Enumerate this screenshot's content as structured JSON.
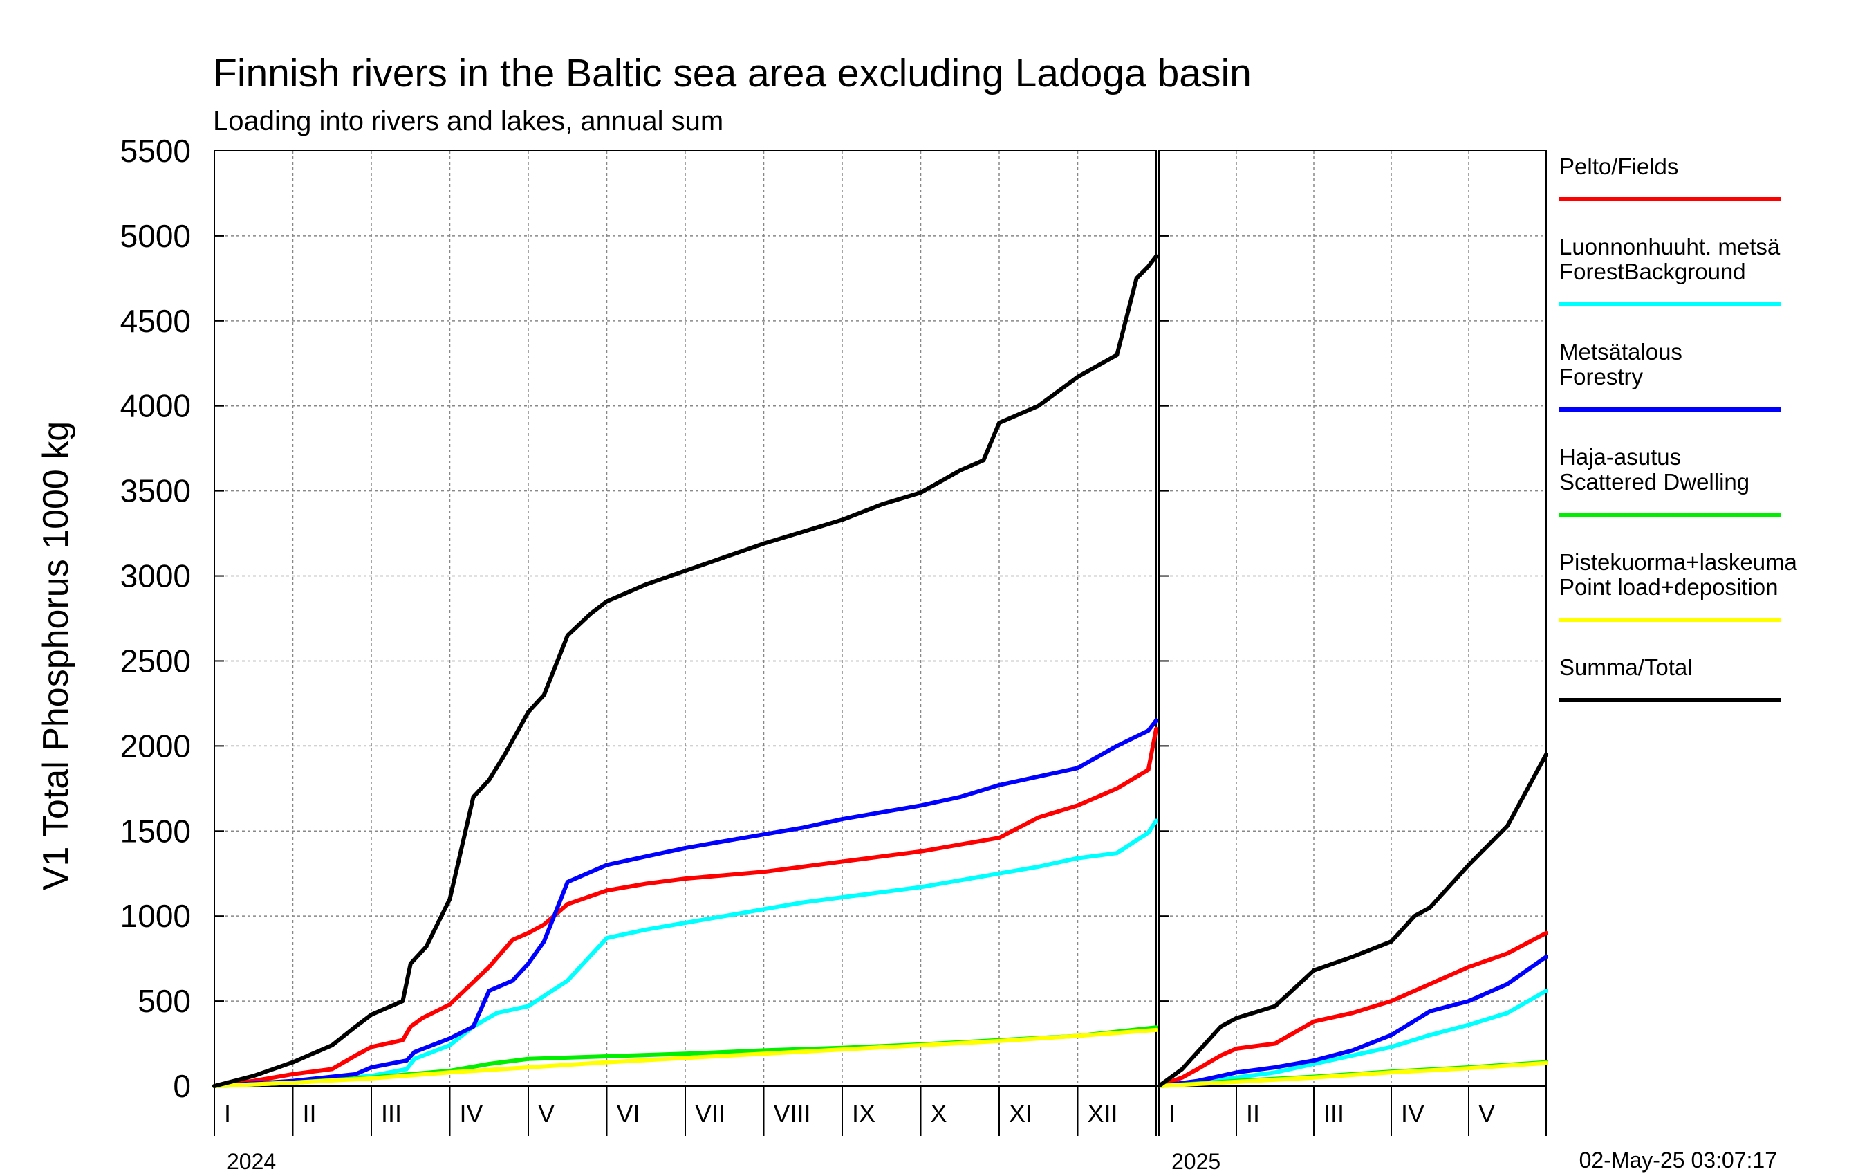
{
  "chart_data": {
    "type": "line",
    "title": "Finnish rivers in the Baltic sea area excluding Ladoga basin",
    "subtitle": "Loading into rivers and lakes, annual sum",
    "ylabel": "V1 Total Phosphorus 1000 kg",
    "ylim": [
      0,
      5500
    ],
    "yticks": [
      "0",
      "500",
      "1000",
      "1500",
      "2000",
      "2500",
      "3000",
      "3500",
      "4000",
      "4500",
      "5000",
      "5500"
    ],
    "grid": true,
    "legend_position": "right",
    "x_unit": "month",
    "panels": [
      {
        "year": "2024",
        "months": [
          "I",
          "II",
          "III",
          "IV",
          "V",
          "VI",
          "VII",
          "VIII",
          "IX",
          "X",
          "XI",
          "XII"
        ],
        "xlim": [
          0,
          12
        ],
        "series": [
          {
            "name": "Pelto/Fields",
            "color": "#ff0000",
            "x": [
              0,
              0.5,
              1,
              1.5,
              1.8,
              2,
              2.4,
              2.5,
              2.65,
              3,
              3.5,
              3.8,
              4,
              4.2,
              4.5,
              5,
              5.5,
              6,
              6.5,
              7,
              7.5,
              8,
              8.5,
              9,
              9.5,
              10,
              10.5,
              11,
              11.5,
              11.9,
              12
            ],
            "y": [
              0,
              30,
              70,
              100,
              180,
              230,
              270,
              350,
              400,
              480,
              700,
              860,
              900,
              950,
              1070,
              1150,
              1190,
              1220,
              1240,
              1260,
              1290,
              1320,
              1350,
              1380,
              1420,
              1460,
              1580,
              1650,
              1750,
              1860,
              2100
            ]
          },
          {
            "name": "Luonnonhuuht. metsä ForestBackground",
            "color": "#00ffff",
            "x": [
              0,
              1,
              2,
              2.45,
              2.55,
              3,
              3.3,
              3.6,
              4,
              4.5,
              5,
              5.5,
              6,
              6.5,
              7,
              7.5,
              8,
              8.5,
              9,
              9.5,
              10,
              10.5,
              11,
              11.5,
              11.9,
              12
            ],
            "y": [
              0,
              20,
              60,
              100,
              160,
              240,
              350,
              430,
              470,
              620,
              870,
              920,
              960,
              1000,
              1040,
              1080,
              1110,
              1140,
              1170,
              1210,
              1250,
              1290,
              1340,
              1370,
              1490,
              1560
            ]
          },
          {
            "name": "Metsätalous Forestry",
            "color": "#0000ff",
            "x": [
              0,
              1,
              1.8,
              2,
              2.45,
              2.55,
              3,
              3.3,
              3.5,
              3.8,
              4,
              4.2,
              4.5,
              5,
              5.5,
              6,
              6.5,
              7,
              7.5,
              8,
              8.5,
              9,
              9.5,
              10,
              10.5,
              11,
              11.5,
              11.9,
              12
            ],
            "y": [
              0,
              30,
              70,
              110,
              150,
              200,
              280,
              350,
              560,
              620,
              720,
              850,
              1200,
              1300,
              1350,
              1400,
              1440,
              1480,
              1520,
              1570,
              1610,
              1650,
              1700,
              1770,
              1820,
              1870,
              2000,
              2090,
              2150
            ]
          },
          {
            "name": "Haja-asutus Scattered Dwelling",
            "color": "#00ee00",
            "x": [
              0,
              1,
              2,
              3,
              3.5,
              4,
              5,
              6,
              7,
              8,
              9,
              10,
              11,
              11.5,
              12
            ],
            "y": [
              0,
              20,
              50,
              90,
              130,
              160,
              175,
              190,
              210,
              225,
              245,
              270,
              295,
              320,
              345
            ]
          },
          {
            "name": "Pistekuorma+laskeuma Point load+deposition",
            "color": "#ffff00",
            "x": [
              0,
              1,
              2,
              3,
              4,
              5,
              6,
              7,
              8,
              9,
              10,
              11,
              12
            ],
            "y": [
              0,
              20,
              45,
              80,
              110,
              140,
              165,
              190,
              215,
              240,
              265,
              295,
              330
            ]
          },
          {
            "name": "Summa/Total",
            "color": "#000000",
            "x": [
              0,
              0.5,
              1,
              1.5,
              1.8,
              2,
              2.4,
              2.5,
              2.7,
              3,
              3.3,
              3.5,
              3.7,
              4,
              4.2,
              4.5,
              4.8,
              5,
              5.5,
              6,
              6.5,
              7,
              7.5,
              8,
              8.5,
              9,
              9.5,
              9.8,
              10,
              10.5,
              11,
              11.5,
              11.75,
              11.9,
              12
            ],
            "y": [
              0,
              60,
              140,
              240,
              350,
              420,
              500,
              720,
              820,
              1100,
              1700,
              1800,
              1950,
              2200,
              2300,
              2650,
              2780,
              2850,
              2950,
              3030,
              3110,
              3190,
              3260,
              3330,
              3420,
              3490,
              3620,
              3680,
              3900,
              4000,
              4170,
              4300,
              4750,
              4820,
              4880
            ]
          }
        ]
      },
      {
        "year": "2025",
        "months": [
          "I",
          "II",
          "III",
          "IV",
          "V"
        ],
        "xlim": [
          0,
          5
        ],
        "series": [
          {
            "name": "Pelto/Fields",
            "color": "#ff0000",
            "x": [
              0,
              0.3,
              0.5,
              0.8,
              1,
              1.5,
              2,
              2.5,
              3,
              3.5,
              4,
              4.5,
              5
            ],
            "y": [
              0,
              50,
              100,
              180,
              220,
              250,
              380,
              430,
              500,
              600,
              700,
              780,
              900
            ]
          },
          {
            "name": "Luonnonhuuht. metsä ForestBackground",
            "color": "#00ffff",
            "x": [
              0,
              0.5,
              1,
              1.5,
              2,
              2.5,
              3,
              3.5,
              4,
              4.5,
              5
            ],
            "y": [
              0,
              20,
              50,
              80,
              130,
              180,
              230,
              300,
              360,
              430,
              560
            ]
          },
          {
            "name": "Metsätalous Forestry",
            "color": "#0000ff",
            "x": [
              0,
              0.5,
              0.8,
              1,
              1.5,
              2,
              2.5,
              3,
              3.5,
              4,
              4.5,
              5
            ],
            "y": [
              0,
              30,
              60,
              80,
              110,
              150,
              210,
              300,
              440,
              500,
              600,
              760
            ]
          },
          {
            "name": "Haja-asutus Scattered Dwelling",
            "color": "#00ee00",
            "x": [
              0,
              1,
              2,
              3,
              4,
              5
            ],
            "y": [
              0,
              30,
              55,
              85,
              110,
              140
            ]
          },
          {
            "name": "Pistekuorma+laskeuma Point load+deposition",
            "color": "#ffff00",
            "x": [
              0,
              1,
              2,
              3,
              4,
              5
            ],
            "y": [
              0,
              25,
              50,
              80,
              105,
              135
            ]
          },
          {
            "name": "Summa/Total",
            "color": "#000000",
            "x": [
              0,
              0.3,
              0.5,
              0.8,
              1,
              1.5,
              2,
              2.5,
              3,
              3.3,
              3.5,
              4,
              4.5,
              5
            ],
            "y": [
              0,
              100,
              200,
              350,
              400,
              470,
              680,
              760,
              850,
              1000,
              1050,
              1300,
              1530,
              1950
            ]
          }
        ]
      }
    ],
    "legend": [
      {
        "label_line1": "Pelto/Fields",
        "label_line2": "",
        "color": "#ff0000"
      },
      {
        "label_line1": "Luonnonhuuht. metsä",
        "label_line2": "ForestBackground",
        "color": "#00ffff"
      },
      {
        "label_line1": "Metsätalous",
        "label_line2": "Forestry",
        "color": "#0000ff"
      },
      {
        "label_line1": "Haja-asutus",
        "label_line2": "Scattered Dwelling",
        "color": "#00ee00"
      },
      {
        "label_line1": "Pistekuorma+laskeuma",
        "label_line2": "Point load+deposition",
        "color": "#ffff00"
      },
      {
        "label_line1": "Summa/Total",
        "label_line2": "",
        "color": "#000000"
      }
    ],
    "timestamp": "02-May-25 03:07:17"
  }
}
